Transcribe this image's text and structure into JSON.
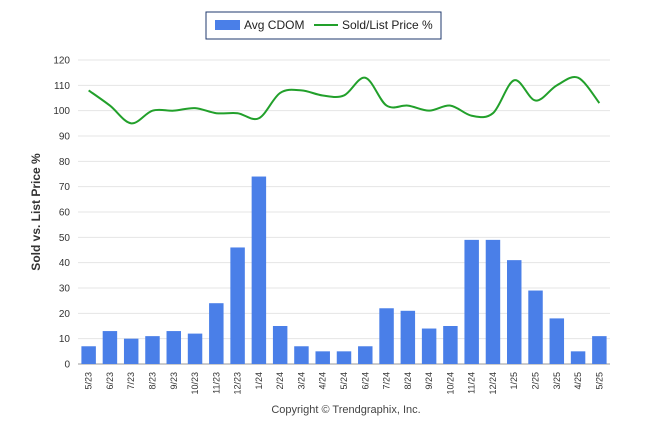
{
  "chart_data": {
    "type": "bar",
    "ylabel": "Sold vs. List Price %",
    "xlabel": "",
    "ylim": [
      0,
      120
    ],
    "yticks": [
      0,
      10,
      20,
      30,
      40,
      50,
      60,
      70,
      80,
      90,
      100,
      110,
      120
    ],
    "grid": true,
    "legend_position": "top-center",
    "categories": [
      "5/23",
      "6/23",
      "7/23",
      "8/23",
      "9/23",
      "10/23",
      "11/23",
      "12/23",
      "1/24",
      "2/24",
      "3/24",
      "4/24",
      "5/24",
      "6/24",
      "7/24",
      "8/24",
      "9/24",
      "10/24",
      "11/24",
      "12/24",
      "1/25",
      "2/25",
      "3/25",
      "4/25",
      "5/25"
    ],
    "series": [
      {
        "name": "Avg CDOM",
        "type": "bar",
        "color": "#4a7fe8",
        "values": [
          7,
          13,
          10,
          11,
          13,
          12,
          24,
          46,
          74,
          15,
          7,
          5,
          5,
          7,
          22,
          21,
          14,
          15,
          49,
          49,
          41,
          29,
          18,
          5,
          11
        ]
      },
      {
        "name": "Sold/List Price %",
        "type": "line",
        "color": "#22a02b",
        "values": [
          108,
          102,
          95,
          100,
          100,
          101,
          99,
          99,
          97,
          107,
          108,
          106,
          106,
          113,
          102,
          102,
          100,
          102,
          98,
          99,
          112,
          104,
          110,
          113,
          103
        ]
      }
    ]
  },
  "copyright": "Copyright © Trendgraphix, Inc."
}
